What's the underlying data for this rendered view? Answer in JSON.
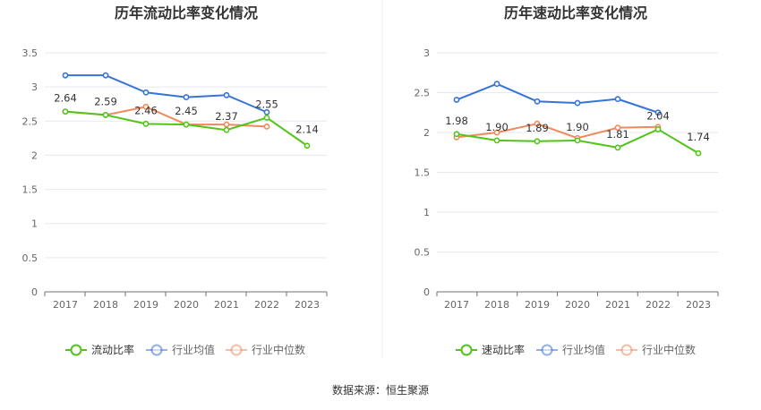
{
  "footer": {
    "source": "数据来源：恒生聚源"
  },
  "colors": {
    "company": "#52c41a",
    "avg": "#3773d9",
    "median": "#f08a5d",
    "grid": "#e6e9f0",
    "axis": "#6e7079"
  },
  "chart_data": [
    {
      "type": "line",
      "title": "历年流动比率变化情况",
      "categories": [
        "2017",
        "2018",
        "2019",
        "2020",
        "2021",
        "2022",
        "2023"
      ],
      "ylim": [
        0,
        3.5
      ],
      "yticks": [
        "0",
        "0.5",
        "1",
        "1.5",
        "2",
        "2.5",
        "3",
        "3.5"
      ],
      "grid": true,
      "legend_position": "bottom",
      "series": [
        {
          "name": "流动比率",
          "role": "company",
          "values": [
            2.64,
            2.59,
            2.46,
            2.45,
            2.37,
            2.55,
            2.14
          ],
          "labels": [
            "2.64",
            "2.59",
            "2.46",
            "2.45",
            "2.37",
            "2.55",
            "2.14"
          ]
        },
        {
          "name": "行业均值",
          "role": "avg",
          "values": [
            3.17,
            3.17,
            2.92,
            2.85,
            2.88,
            2.63,
            null
          ]
        },
        {
          "name": "行业中位数",
          "role": "median",
          "values": [
            2.64,
            2.59,
            2.71,
            2.45,
            2.45,
            2.42,
            null
          ]
        }
      ]
    },
    {
      "type": "line",
      "title": "历年速动比率变化情况",
      "categories": [
        "2017",
        "2018",
        "2019",
        "2020",
        "2021",
        "2022",
        "2023"
      ],
      "ylim": [
        0,
        3
      ],
      "yticks": [
        "0",
        "0.5",
        "1",
        "1.5",
        "2",
        "2.5",
        "3"
      ],
      "grid": true,
      "legend_position": "bottom",
      "series": [
        {
          "name": "速动比率",
          "role": "company",
          "values": [
            1.98,
            1.9,
            1.89,
            1.9,
            1.81,
            2.04,
            1.74
          ],
          "labels": [
            "1.98",
            "1.90",
            "1.89",
            "1.90",
            "1.81",
            "2.04",
            "1.74"
          ]
        },
        {
          "name": "行业均值",
          "role": "avg",
          "values": [
            2.41,
            2.61,
            2.39,
            2.37,
            2.42,
            2.25,
            null
          ]
        },
        {
          "name": "行业中位数",
          "role": "median",
          "values": [
            1.94,
            2.0,
            2.11,
            1.93,
            2.06,
            2.07,
            null
          ]
        }
      ]
    }
  ]
}
